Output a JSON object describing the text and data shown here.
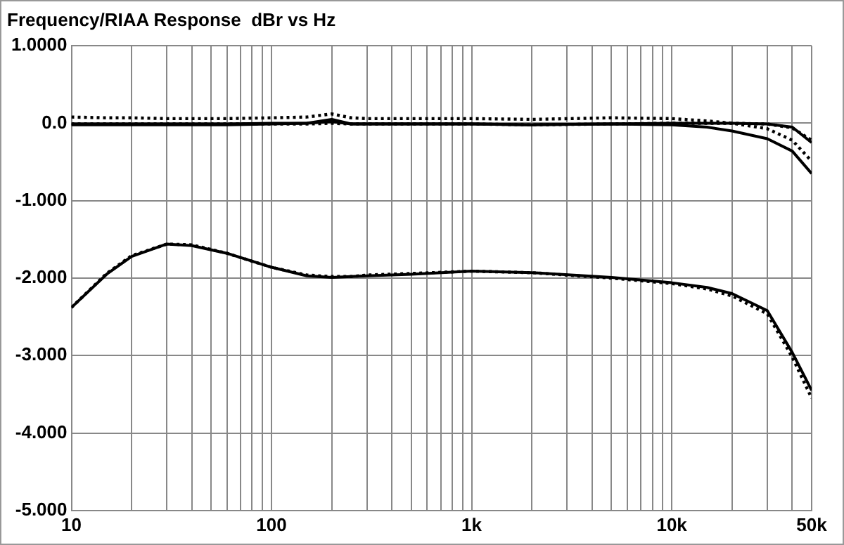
{
  "chart_data": {
    "type": "line",
    "title": "Frequency/RIAA Response  dBr vs Hz",
    "x": [
      10,
      15,
      20,
      30,
      40,
      60,
      100,
      150,
      200,
      250,
      300,
      500,
      1000,
      2000,
      5000,
      10000,
      15000,
      20000,
      30000,
      40000,
      50000
    ],
    "series": [
      {
        "color": "#000000",
        "line_style": "solid",
        "values": [
          -0.02,
          -0.02,
          -0.02,
          -0.02,
          -0.02,
          -0.02,
          -0.01,
          0.0,
          0.05,
          -0.01,
          -0.01,
          -0.01,
          -0.01,
          -0.02,
          -0.01,
          -0.02,
          -0.05,
          -0.1,
          -0.2,
          -0.36,
          -0.65
        ]
      },
      {
        "color": "#000000",
        "line_style": "solid",
        "values": [
          -0.01,
          -0.01,
          -0.01,
          -0.01,
          -0.01,
          -0.01,
          0.0,
          0.0,
          0.02,
          -0.01,
          -0.01,
          -0.01,
          -0.01,
          -0.02,
          -0.01,
          0.0,
          0.0,
          0.0,
          -0.01,
          -0.05,
          -0.25
        ]
      },
      {
        "color": "#000000",
        "line_style": "dotted",
        "values": [
          0.08,
          0.07,
          0.07,
          0.06,
          0.06,
          0.06,
          0.07,
          0.08,
          0.12,
          0.07,
          0.06,
          0.06,
          0.06,
          0.05,
          0.07,
          0.06,
          0.03,
          0.0,
          -0.07,
          -0.22,
          -0.49
        ]
      },
      {
        "color": "#000000",
        "line_style": "dotted",
        "values": [
          -0.01,
          -0.01,
          -0.01,
          -0.01,
          -0.01,
          -0.01,
          -0.01,
          -0.01,
          0.0,
          -0.01,
          -0.01,
          -0.01,
          -0.01,
          -0.02,
          -0.01,
          0.0,
          0.0,
          0.0,
          -0.01,
          -0.06,
          -0.22
        ]
      },
      {
        "color": "#000000",
        "line_style": "solid",
        "values": [
          -2.38,
          -1.95,
          -1.72,
          -1.56,
          -1.58,
          -1.68,
          -1.86,
          -1.97,
          -1.99,
          -1.98,
          -1.97,
          -1.95,
          -1.91,
          -1.93,
          -1.99,
          -2.06,
          -2.12,
          -2.2,
          -2.42,
          -2.96,
          -3.45
        ]
      },
      {
        "color": "#000000",
        "line_style": "dotted",
        "values": [
          -2.38,
          -1.94,
          -1.71,
          -1.56,
          -1.57,
          -1.68,
          -1.86,
          -1.96,
          -1.98,
          -1.98,
          -1.96,
          -1.94,
          -1.91,
          -1.93,
          -2.0,
          -2.07,
          -2.14,
          -2.23,
          -2.46,
          -3.02,
          -3.55
        ]
      }
    ],
    "xlim": [
      10,
      50000
    ],
    "ylim": [
      -5,
      1
    ],
    "log": "x",
    "xticks": [
      10,
      {
        "value": 20,
        "label": null
      },
      {
        "value": 30,
        "label": null
      },
      {
        "value": 40,
        "label": null
      },
      {
        "value": 50,
        "label": null
      },
      {
        "value": 60,
        "label": null
      },
      {
        "value": 70,
        "label": null
      },
      {
        "value": 80,
        "label": null
      },
      {
        "value": 90,
        "label": null
      },
      100,
      {
        "value": 200,
        "label": null
      },
      {
        "value": 300,
        "label": null
      },
      {
        "value": 400,
        "label": null
      },
      {
        "value": 500,
        "label": null
      },
      {
        "value": 600,
        "label": null
      },
      {
        "value": 700,
        "label": null
      },
      {
        "value": 800,
        "label": null
      },
      {
        "value": 900,
        "label": null
      },
      {
        "value": 1000,
        "label": "1k"
      },
      {
        "value": 2000,
        "label": null
      },
      {
        "value": 3000,
        "label": null
      },
      {
        "value": 4000,
        "label": null
      },
      {
        "value": 5000,
        "label": null
      },
      {
        "value": 6000,
        "label": null
      },
      {
        "value": 7000,
        "label": null
      },
      {
        "value": 8000,
        "label": null
      },
      {
        "value": 9000,
        "label": null
      },
      {
        "value": 10000,
        "label": "10k"
      },
      {
        "value": 20000,
        "label": null
      },
      {
        "value": 30000,
        "label": null
      },
      {
        "value": 40000,
        "label": null
      },
      {
        "value": 50000,
        "label": "50k"
      }
    ],
    "yticks": [
      {
        "value": 1,
        "label": "1.0000"
      },
      {
        "value": 0,
        "label": "0.0"
      },
      {
        "value": -1,
        "label": "-1.000"
      },
      {
        "value": -2,
        "label": "-2.000"
      },
      {
        "value": -3,
        "label": "-3.000"
      },
      {
        "value": -4,
        "label": "-4.000"
      },
      {
        "value": -5,
        "label": "-5.000"
      }
    ],
    "grid": true,
    "legend": false
  }
}
